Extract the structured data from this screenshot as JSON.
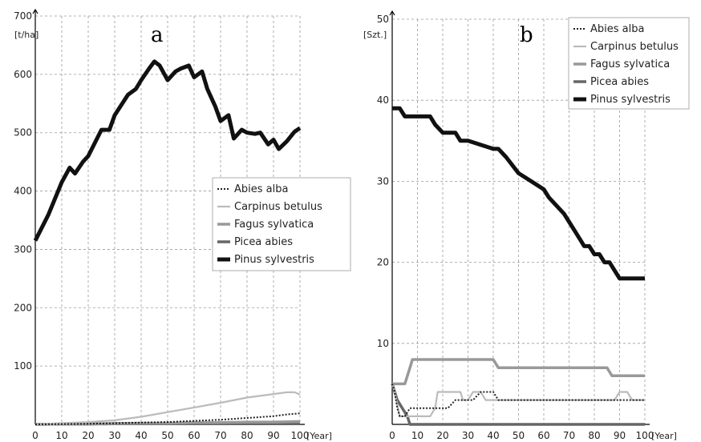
{
  "colors": {
    "abies": "#222222",
    "carpinus": "#bbbbbb",
    "fagus": "#999999",
    "picea": "#666666",
    "pinus": "#111111"
  },
  "chart_data": [
    {
      "type": "line",
      "panel_label": "a",
      "xlabel": "[Year]",
      "ylabel": "[t/ha]",
      "xlim": [
        0,
        100
      ],
      "ylim": [
        0,
        700
      ],
      "xticks": [
        "0",
        "10",
        "20",
        "30",
        "40",
        "50",
        "60",
        "70",
        "80",
        "90",
        "100"
      ],
      "yticks": [
        "100",
        "200",
        "300",
        "400",
        "500",
        "600",
        "700"
      ],
      "grid": true,
      "legend_position": "center-right",
      "series": [
        {
          "name": "Abies alba",
          "key": "abies",
          "x": [
            0,
            10,
            20,
            30,
            40,
            50,
            60,
            70,
            80,
            90,
            95,
            100
          ],
          "values": [
            0,
            0.5,
            1,
            2,
            3,
            4,
            6,
            8,
            11,
            14,
            17,
            19
          ]
        },
        {
          "name": "Carpinus betulus",
          "key": "carpinus",
          "x": [
            0,
            10,
            20,
            30,
            40,
            50,
            60,
            70,
            80,
            90,
            95,
            98,
            100
          ],
          "values": [
            0,
            2,
            4,
            7,
            13,
            21,
            29,
            37,
            46,
            52,
            55,
            55,
            51
          ]
        },
        {
          "name": "Fagus sylvatica",
          "key": "fagus",
          "x": [
            0,
            10,
            20,
            30,
            40,
            50,
            60,
            70,
            80,
            90,
            100
          ],
          "values": [
            0,
            0.5,
            1,
            1.5,
            2,
            2,
            3,
            3,
            4,
            4,
            5
          ]
        },
        {
          "name": "Picea abies",
          "key": "picea",
          "x": [
            0,
            10,
            20,
            30,
            40,
            50,
            60,
            70,
            80,
            90,
            100
          ],
          "values": [
            0,
            0.5,
            0.5,
            1,
            1,
            1,
            1,
            1,
            1,
            1,
            1
          ]
        },
        {
          "name": "Pinus sylvestris",
          "key": "pinus",
          "x": [
            0,
            5,
            10,
            13,
            15,
            18,
            20,
            25,
            28,
            30,
            35,
            38,
            40,
            43,
            45,
            47,
            50,
            53,
            55,
            58,
            60,
            63,
            65,
            68,
            70,
            73,
            75,
            78,
            80,
            83,
            85,
            88,
            90,
            92,
            95,
            98,
            100
          ],
          "values": [
            315,
            360,
            415,
            440,
            430,
            450,
            460,
            505,
            505,
            530,
            565,
            575,
            590,
            610,
            622,
            615,
            590,
            605,
            610,
            615,
            595,
            605,
            575,
            545,
            520,
            530,
            490,
            505,
            500,
            498,
            500,
            480,
            488,
            472,
            485,
            502,
            508
          ]
        }
      ]
    },
    {
      "type": "line",
      "panel_label": "b",
      "xlabel": "[Year]",
      "ylabel": "[Szt.]",
      "xlim": [
        0,
        100
      ],
      "ylim": [
        0,
        50
      ],
      "xticks": [
        "0",
        "10",
        "20",
        "30",
        "40",
        "50",
        "60",
        "70",
        "80",
        "90",
        "100"
      ],
      "yticks": [
        "10",
        "20",
        "30",
        "40",
        "50"
      ],
      "grid": true,
      "legend_position": "top-right",
      "series": [
        {
          "name": "Abies alba",
          "key": "abies",
          "x": [
            0,
            1,
            2,
            3,
            5,
            7,
            10,
            12,
            15,
            18,
            22,
            25,
            27,
            30,
            32,
            35,
            37,
            40,
            42,
            45,
            50,
            60,
            70,
            80,
            90,
            100
          ],
          "values": [
            5,
            4,
            2,
            1,
            1,
            2,
            2,
            2,
            2,
            2,
            2,
            3,
            3,
            3,
            3,
            4,
            4,
            4,
            3,
            3,
            3,
            3,
            3,
            3,
            3,
            3
          ]
        },
        {
          "name": "Carpinus betulus",
          "key": "carpinus",
          "x": [
            0,
            1,
            3,
            5,
            8,
            12,
            15,
            17,
            18,
            20,
            25,
            27,
            28,
            30,
            32,
            33,
            35,
            37,
            40,
            42,
            45,
            50,
            60,
            70,
            80,
            88,
            90,
            93,
            95,
            100
          ],
          "values": [
            5,
            4,
            1,
            1,
            1,
            1,
            1,
            2,
            4,
            4,
            4,
            4,
            3,
            3,
            4,
            4,
            4,
            3,
            3,
            3,
            3,
            3,
            3,
            3,
            3,
            3,
            4,
            4,
            3,
            3
          ]
        },
        {
          "name": "Fagus sylvatica",
          "key": "fagus",
          "x": [
            0,
            3,
            5,
            7,
            8,
            40,
            42,
            85,
            87,
            100
          ],
          "values": [
            5,
            5,
            5,
            7,
            8,
            8,
            7,
            7,
            6,
            6
          ]
        },
        {
          "name": "Picea abies",
          "key": "picea",
          "x": [
            0,
            2,
            4,
            6,
            7,
            10,
            100
          ],
          "values": [
            5,
            3,
            2,
            1,
            0,
            0,
            0
          ]
        },
        {
          "name": "Pinus sylvestris",
          "key": "pinus",
          "x": [
            0,
            3,
            5,
            8,
            15,
            17,
            20,
            25,
            27,
            30,
            40,
            42,
            45,
            50,
            55,
            60,
            62,
            65,
            68,
            70,
            72,
            74,
            76,
            78,
            80,
            82,
            84,
            86,
            88,
            90,
            92,
            95,
            100
          ],
          "values": [
            39,
            39,
            38,
            38,
            38,
            37,
            36,
            36,
            35,
            35,
            34,
            34,
            33,
            31,
            30,
            29,
            28,
            27,
            26,
            25,
            24,
            23,
            22,
            22,
            21,
            21,
            20,
            20,
            19,
            18,
            18,
            18,
            18
          ]
        }
      ]
    }
  ]
}
